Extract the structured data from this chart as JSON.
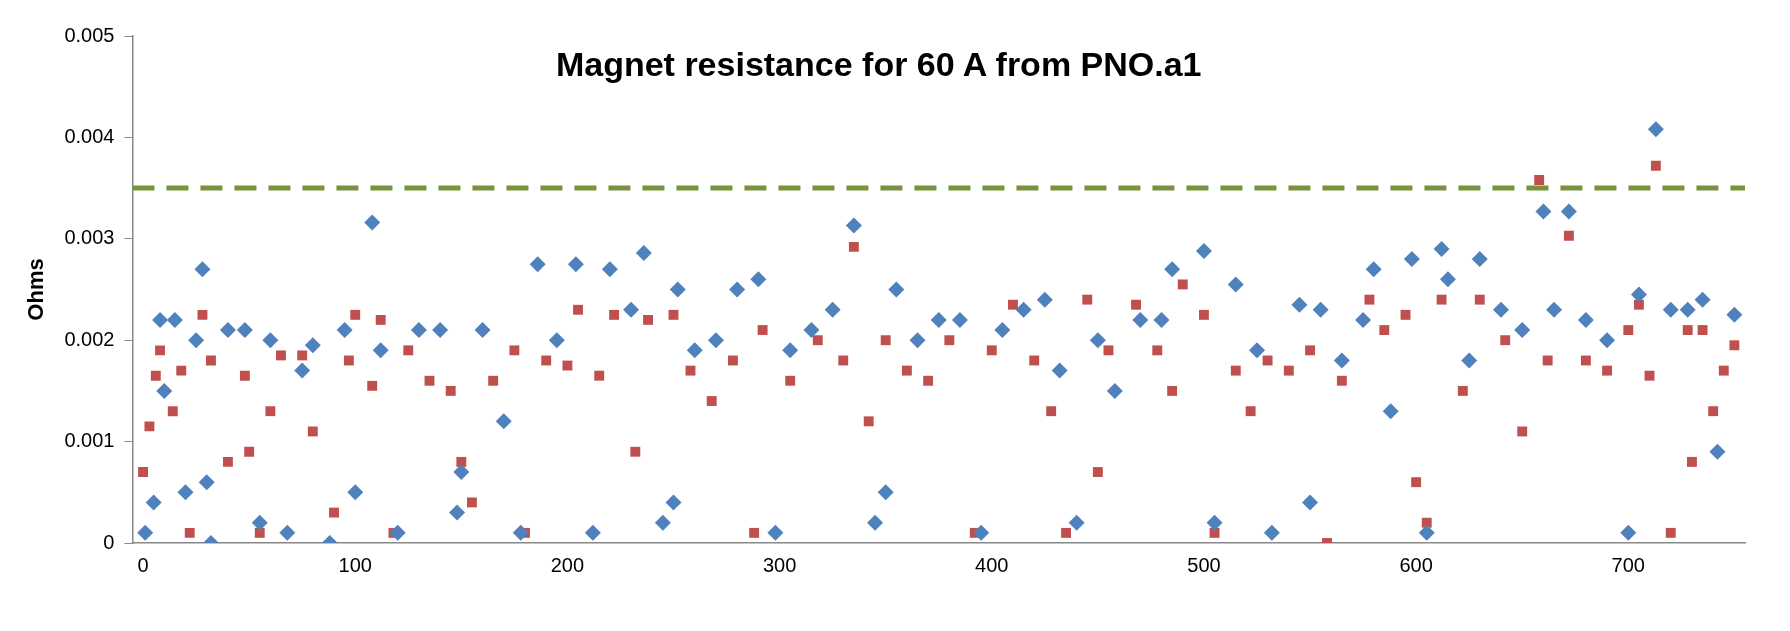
{
  "chart_data": {
    "type": "scatter",
    "title": "Magnet resistance for 60 A from PNO.a1",
    "ylabel": "Ohms",
    "xlim": [
      -5,
      755
    ],
    "xticks": [
      0,
      100,
      200,
      300,
      400,
      500,
      600,
      700
    ],
    "ylim": [
      0,
      0.005
    ],
    "yticks": [
      0,
      0.001,
      0.002,
      0.003,
      0.004,
      0.005
    ],
    "grid": false,
    "legend": false,
    "ref_lines": [
      {
        "axis": "y",
        "value": 0.0035,
        "color": "#77933c",
        "line_style": "dashed"
      }
    ],
    "series": [
      {
        "color": "#4f81bd",
        "marker": "diamond",
        "x": [
          1,
          5,
          8,
          10,
          15,
          20,
          25,
          28,
          30,
          32,
          40,
          48,
          55,
          60,
          68,
          75,
          80,
          88,
          95,
          100,
          108,
          112,
          120,
          130,
          140,
          148,
          150,
          160,
          170,
          178,
          186,
          195,
          204,
          212,
          220,
          230,
          236,
          245,
          250,
          252,
          260,
          270,
          280,
          290,
          298,
          305,
          315,
          325,
          335,
          345,
          350,
          355,
          365,
          375,
          385,
          395,
          405,
          415,
          425,
          432,
          440,
          450,
          458,
          470,
          480,
          485,
          500,
          505,
          515,
          525,
          532,
          545,
          550,
          555,
          565,
          575,
          580,
          588,
          598,
          605,
          612,
          615,
          625,
          630,
          640,
          650,
          660,
          665,
          672,
          680,
          690,
          700,
          705,
          713,
          720,
          728,
          735,
          742,
          750
        ],
        "values": [
          0.0001,
          0.0004,
          0.0022,
          0.0015,
          0.0022,
          0.0005,
          0.002,
          0.0027,
          0.0006,
          0.0,
          0.0021,
          0.0021,
          0.0002,
          0.002,
          0.0001,
          0.0017,
          0.00195,
          0.0,
          0.0021,
          0.0005,
          0.00316,
          0.0019,
          0.0001,
          0.0021,
          0.0021,
          0.0003,
          0.0007,
          0.0021,
          0.0012,
          0.0001,
          0.00275,
          0.002,
          0.00275,
          0.0001,
          0.0027,
          0.0023,
          0.00286,
          0.0002,
          0.0004,
          0.0025,
          0.0019,
          0.002,
          0.0025,
          0.0026,
          0.0001,
          0.0019,
          0.0021,
          0.0023,
          0.00313,
          0.0002,
          0.0005,
          0.0025,
          0.002,
          0.0022,
          0.0022,
          0.0001,
          0.0021,
          0.0023,
          0.0024,
          0.0017,
          0.0002,
          0.002,
          0.0015,
          0.0022,
          0.0022,
          0.0027,
          0.00288,
          0.0002,
          0.00255,
          0.0019,
          0.0001,
          0.00235,
          0.0004,
          0.0023,
          0.0018,
          0.0022,
          0.0027,
          0.0013,
          0.0028,
          0.0001,
          0.0029,
          0.0026,
          0.0018,
          0.0028,
          0.0023,
          0.0021,
          0.00327,
          0.0023,
          0.00327,
          0.0022,
          0.002,
          0.0001,
          0.00245,
          0.00408,
          0.0023,
          0.0023,
          0.0024,
          0.0009,
          0.00225
        ]
      },
      {
        "color": "#c0504d",
        "marker": "square",
        "x": [
          0,
          3,
          6,
          8,
          14,
          18,
          22,
          28,
          32,
          40,
          48,
          50,
          55,
          60,
          65,
          75,
          80,
          90,
          97,
          100,
          108,
          112,
          118,
          125,
          135,
          145,
          150,
          155,
          165,
          175,
          180,
          190,
          200,
          205,
          215,
          222,
          232,
          238,
          250,
          258,
          268,
          278,
          288,
          292,
          305,
          318,
          330,
          335,
          342,
          350,
          360,
          370,
          380,
          392,
          400,
          410,
          420,
          428,
          435,
          445,
          450,
          455,
          468,
          478,
          485,
          490,
          500,
          505,
          515,
          522,
          530,
          540,
          550,
          558,
          565,
          578,
          585,
          595,
          600,
          605,
          612,
          622,
          630,
          642,
          650,
          658,
          662,
          672,
          680,
          690,
          700,
          705,
          710,
          713,
          720,
          728,
          730,
          735,
          740,
          745,
          750
        ],
        "values": [
          0.0007,
          0.00115,
          0.00165,
          0.0019,
          0.0013,
          0.0017,
          0.0001,
          0.00225,
          0.0018,
          0.0008,
          0.00165,
          0.0009,
          0.0001,
          0.0013,
          0.00185,
          0.00185,
          0.0011,
          0.0003,
          0.0018,
          0.00225,
          0.00155,
          0.0022,
          0.0001,
          0.0019,
          0.0016,
          0.0015,
          0.0008,
          0.0004,
          0.0016,
          0.0019,
          0.0001,
          0.0018,
          0.00175,
          0.0023,
          0.00165,
          0.00225,
          0.0009,
          0.0022,
          0.00225,
          0.0017,
          0.0014,
          0.0018,
          0.0001,
          0.0021,
          0.0016,
          0.002,
          0.0018,
          0.00292,
          0.0012,
          0.002,
          0.0017,
          0.0016,
          0.002,
          0.0001,
          0.0019,
          0.00235,
          0.0018,
          0.0013,
          0.0001,
          0.0024,
          0.0007,
          0.0019,
          0.00235,
          0.0019,
          0.0015,
          0.00255,
          0.00225,
          0.0001,
          0.0017,
          0.0013,
          0.0018,
          0.0017,
          0.0019,
          0.0,
          0.0016,
          0.0024,
          0.0021,
          0.00225,
          0.0006,
          0.0002,
          0.0024,
          0.0015,
          0.0024,
          0.002,
          0.0011,
          0.00358,
          0.0018,
          0.00303,
          0.0018,
          0.0017,
          0.0021,
          0.00235,
          0.00165,
          0.00372,
          0.0001,
          0.0021,
          0.0008,
          0.0021,
          0.0013,
          0.0017,
          0.00195
        ]
      }
    ]
  }
}
